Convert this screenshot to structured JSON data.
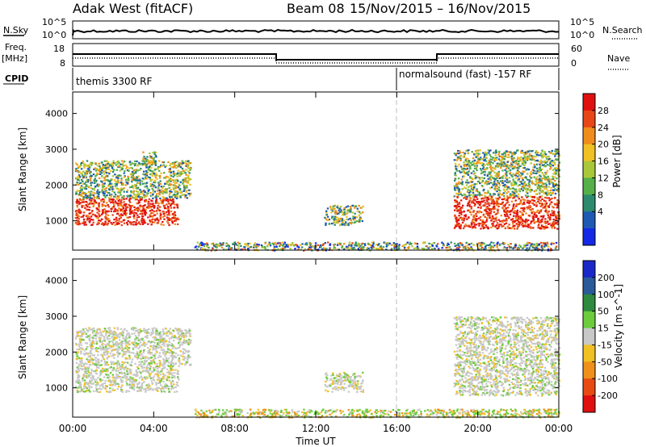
{
  "header": {
    "radar": "Adak West (fitACF)",
    "beam": "Beam 08",
    "date_range": "15/Nov/2015 – 16/Nov/2015"
  },
  "left_labels": {
    "nsky": "N.Sky",
    "freq": "Freq.",
    "freq_unit": "[MHz]",
    "cpid": "CPID",
    "nsky_top": "10^5",
    "nsky_bot": "10^0",
    "freq_top": "18",
    "freq_bot": "8"
  },
  "right_labels": {
    "nsearch": "N.Search",
    "nave": "Nave",
    "nsearch_top": "10^5",
    "nsearch_bot": "10^0",
    "nave_top": "60",
    "nave_bot": "0"
  },
  "cpid_labels": [
    "themis 3300 RF",
    "normalsound (fast) -157 RF"
  ],
  "x_axis": {
    "title": "Time UT",
    "ticks": [
      "00:00",
      "04:00",
      "08:00",
      "12:00",
      "16:00",
      "20:00",
      "00:00"
    ]
  },
  "chart_data": [
    {
      "type": "heatmap",
      "title": "Power",
      "ylabel": "Slant Range [km]",
      "ylim": [
        180,
        4600
      ],
      "yticks": [
        "1000",
        "2000",
        "3000",
        "4000"
      ],
      "colorbar": {
        "label": "Power [dB]",
        "ticks": [
          "4",
          "8",
          "12",
          "16",
          "20",
          "24",
          "28"
        ],
        "colors": [
          "#1428e6",
          "#1e5ab4",
          "#2c8a6e",
          "#55b04a",
          "#a8c83a",
          "#f0c024",
          "#f08c1c",
          "#e84616",
          "#e01010"
        ]
      },
      "regions": [
        {
          "t0": 0.1,
          "t1": 5.2,
          "r0": 900,
          "r1": 1650,
          "level": "high"
        },
        {
          "t0": 0.1,
          "t1": 5.8,
          "r0": 1650,
          "r1": 2700,
          "level": "medium"
        },
        {
          "t0": 3.4,
          "t1": 4.1,
          "r0": 2600,
          "r1": 2950,
          "level": "medium"
        },
        {
          "t0": 12.4,
          "t1": 14.3,
          "r0": 900,
          "r1": 1450,
          "level": "medium"
        },
        {
          "t0": 6.0,
          "t1": 24.0,
          "r0": 190,
          "r1": 420,
          "level": "low"
        },
        {
          "t0": 18.8,
          "t1": 24.0,
          "r0": 800,
          "r1": 1700,
          "level": "high"
        },
        {
          "t0": 18.8,
          "t1": 24.0,
          "r0": 1700,
          "r1": 3000,
          "level": "medium"
        }
      ]
    },
    {
      "type": "heatmap",
      "title": "Velocity",
      "ylabel": "Slant Range [km]",
      "ylim": [
        180,
        4600
      ],
      "yticks": [
        "1000",
        "2000",
        "3000",
        "4000"
      ],
      "colorbar": {
        "label": "Velocity [m s^-1]",
        "ticks": [
          "200",
          "100",
          "50",
          "15",
          "-15",
          "-50",
          "-100",
          "-200"
        ],
        "colors": [
          "#1a28c8",
          "#2a5a9a",
          "#2e8a3e",
          "#6ccc3c",
          "#c8c8c8",
          "#f0c024",
          "#f0901c",
          "#e84a14",
          "#e01010"
        ]
      },
      "regions": [
        {
          "t0": 0.1,
          "t1": 5.2,
          "r0": 900,
          "r1": 1650,
          "level": "grey"
        },
        {
          "t0": 0.1,
          "t1": 5.8,
          "r0": 1650,
          "r1": 2700,
          "level": "grey"
        },
        {
          "t0": 12.4,
          "t1": 14.3,
          "r0": 900,
          "r1": 1450,
          "level": "grey"
        },
        {
          "t0": 6.0,
          "t1": 24.0,
          "r0": 190,
          "r1": 420,
          "level": "green"
        },
        {
          "t0": 18.8,
          "t1": 24.0,
          "r0": 800,
          "r1": 1700,
          "level": "grey"
        },
        {
          "t0": 18.8,
          "t1": 24.0,
          "r0": 1700,
          "r1": 3000,
          "level": "grey"
        }
      ]
    }
  ]
}
